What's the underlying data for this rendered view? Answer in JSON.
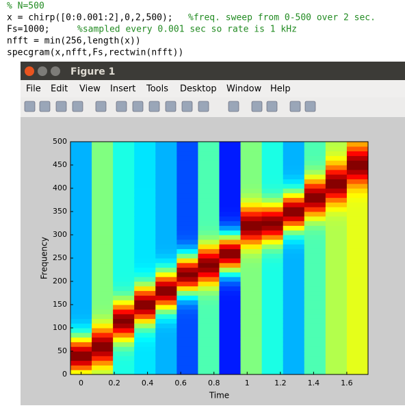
{
  "code": [
    {
      "code": "",
      "comment": "% N=500"
    },
    {
      "code": "x = chirp([0:0.001:2],0,2,500);",
      "comment": "%freq. sweep from 0-500 over 2 sec."
    },
    {
      "code": "Fs=1000;",
      "comment": "%sampled every 0.001 sec so rate is 1 kHz"
    },
    {
      "code": "nfft = min(256,length(x))",
      "comment": ""
    },
    {
      "code": "specgram(x,nfft,Fs,rectwin(nfft))",
      "comment": ""
    }
  ],
  "window": {
    "title": "Figure 1",
    "menu": [
      "File",
      "Edit",
      "View",
      "Insert",
      "Tools",
      "Desktop",
      "Window",
      "Help"
    ]
  },
  "chart_data": {
    "type": "spectrogram",
    "x": [
      0,
      0.128,
      0.256,
      0.384,
      0.512,
      0.64,
      0.768,
      0.896,
      1.024,
      1.152,
      1.28,
      1.408,
      1.536,
      1.664
    ],
    "values": [
      40,
      60,
      115,
      150,
      180,
      215,
      235,
      260,
      320,
      325,
      350,
      380,
      410,
      450
    ],
    "background": [
      0.3,
      0.5,
      0.4,
      0.35,
      0.3,
      0.2,
      0.45,
      0.15,
      0.5,
      0.4,
      0.3,
      0.45,
      0.55,
      0.6
    ],
    "xlabel": "Time",
    "ylabel": "Frequency",
    "xlim": [
      -0.064,
      1.728
    ],
    "ylim": [
      0,
      500
    ],
    "xticks": [
      0,
      0.2,
      0.4,
      0.6,
      0.8,
      1,
      1.2,
      1.4,
      1.6
    ],
    "yticks": [
      0,
      50,
      100,
      150,
      200,
      250,
      300,
      350,
      400,
      450,
      500
    ]
  }
}
